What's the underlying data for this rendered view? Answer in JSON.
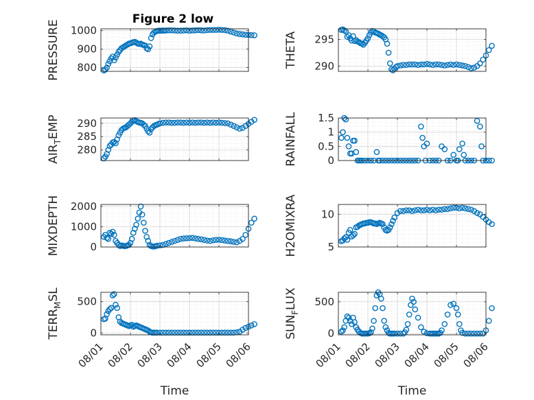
{
  "figure_title": "Figure 2 low",
  "colors": {
    "marker": "#0072BD",
    "axis": "#262626",
    "grid": "#e0e0e0"
  },
  "chart_data": [
    {
      "type": "scatter",
      "title": "Figure 2 low",
      "ylabel": "PRESSURE",
      "xlabel": "",
      "xlim": [
        "08/01",
        "08/06"
      ],
      "ylim": [
        780,
        1010
      ],
      "yticks": [
        "800",
        "900",
        "1000"
      ],
      "yticks_val": [
        800,
        900,
        1000
      ],
      "grid": true,
      "x": [
        0.1,
        0.15,
        0.2,
        0.25,
        0.3,
        0.35,
        0.4,
        0.45,
        0.5,
        0.55,
        0.6,
        0.65,
        0.7,
        0.75,
        0.8,
        0.85,
        0.9,
        0.95,
        1.0,
        1.05,
        1.1,
        1.15,
        1.2,
        1.25,
        1.3,
        1.35,
        1.4,
        1.45,
        1.5,
        1.55,
        1.6,
        1.65,
        1.7,
        1.75,
        1.8,
        1.85,
        1.9,
        1.95,
        2.0,
        2.05,
        2.1,
        2.15,
        2.2,
        2.3,
        2.4,
        2.5,
        2.6,
        2.7,
        2.8,
        2.9,
        3.0,
        3.1,
        3.2,
        3.3,
        3.4,
        3.5,
        3.6,
        3.7,
        3.8,
        3.9,
        4.0,
        4.1,
        4.2,
        4.3,
        4.4,
        4.5,
        4.6,
        4.7,
        4.8,
        4.9,
        5.0,
        5.1,
        5.2
      ],
      "y": [
        785,
        790,
        800,
        820,
        835,
        850,
        860,
        840,
        855,
        870,
        885,
        895,
        905,
        910,
        915,
        920,
        925,
        930,
        932,
        935,
        938,
        940,
        935,
        930,
        928,
        930,
        925,
        922,
        920,
        905,
        900,
        915,
        960,
        980,
        990,
        995,
        998,
        1000,
        1000,
        1000,
        1001,
        1000,
        1001,
        1002,
        1002,
        1001,
        1000,
        1000,
        1001,
        1002,
        1000,
        1001,
        1002,
        1003,
        1002,
        1001,
        1003,
        1004,
        1004,
        1004,
        1005,
        1004,
        1003,
        1000,
        995,
        990,
        985,
        982,
        980,
        978,
        977,
        976,
        975
      ]
    },
    {
      "type": "scatter",
      "title": "",
      "ylabel": "THETA",
      "xlabel": "",
      "xlim": [
        "08/01",
        "08/06"
      ],
      "ylim": [
        289,
        297
      ],
      "yticks": [
        "290",
        "295"
      ],
      "yticks_val": [
        290,
        295
      ],
      "grid": true,
      "x": [
        0.1,
        0.15,
        0.2,
        0.25,
        0.3,
        0.35,
        0.4,
        0.45,
        0.5,
        0.55,
        0.6,
        0.65,
        0.7,
        0.75,
        0.8,
        0.85,
        0.9,
        0.95,
        1.0,
        1.05,
        1.1,
        1.15,
        1.2,
        1.25,
        1.3,
        1.35,
        1.4,
        1.45,
        1.5,
        1.55,
        1.6,
        1.65,
        1.7,
        1.75,
        1.8,
        1.85,
        1.9,
        1.95,
        2.0,
        2.1,
        2.2,
        2.3,
        2.4,
        2.5,
        2.6,
        2.7,
        2.8,
        2.9,
        3.0,
        3.1,
        3.2,
        3.3,
        3.4,
        3.5,
        3.6,
        3.7,
        3.8,
        3.9,
        4.0,
        4.1,
        4.2,
        4.3,
        4.4,
        4.5,
        4.6,
        4.7,
        4.8,
        4.9,
        5.0,
        5.1,
        5.2
      ],
      "y": [
        296.8,
        296.9,
        296.7,
        296.5,
        295.5,
        295.8,
        295.2,
        294.8,
        295.6,
        294.7,
        294.9,
        294.6,
        294.5,
        294.3,
        294.2,
        294.0,
        294.4,
        294.8,
        295.2,
        295.8,
        296.3,
        296.6,
        296.5,
        296.3,
        296.2,
        296.1,
        295.9,
        295.8,
        295.6,
        295.4,
        295.0,
        294.2,
        292.5,
        290.5,
        289.4,
        289.2,
        289.5,
        289.8,
        290.0,
        290.1,
        290.2,
        290.2,
        290.3,
        290.3,
        290.3,
        290.2,
        290.3,
        290.3,
        290.4,
        290.3,
        290.2,
        290.3,
        290.3,
        290.2,
        290.1,
        290.2,
        290.3,
        290.2,
        290.3,
        290.2,
        290.1,
        290.0,
        289.8,
        289.6,
        289.7,
        290.0,
        290.5,
        291.2,
        292.0,
        293.0,
        293.8
      ]
    },
    {
      "type": "scatter",
      "title": "",
      "ylabel": "AIR_TEMP",
      "xlabel": "",
      "xlim": [
        "08/01",
        "08/06"
      ],
      "ylim": [
        276,
        292
      ],
      "yticks": [
        "280",
        "285",
        "290"
      ],
      "yticks_val": [
        280,
        285,
        290
      ],
      "grid": true,
      "x": [
        0.1,
        0.15,
        0.2,
        0.25,
        0.3,
        0.35,
        0.4,
        0.45,
        0.5,
        0.55,
        0.6,
        0.65,
        0.7,
        0.75,
        0.8,
        0.85,
        0.9,
        0.95,
        1.0,
        1.05,
        1.1,
        1.15,
        1.2,
        1.25,
        1.3,
        1.35,
        1.4,
        1.45,
        1.5,
        1.55,
        1.6,
        1.65,
        1.7,
        1.75,
        1.8,
        1.85,
        1.9,
        1.95,
        2.0,
        2.1,
        2.2,
        2.3,
        2.4,
        2.5,
        2.6,
        2.7,
        2.8,
        2.9,
        3.0,
        3.1,
        3.2,
        3.3,
        3.4,
        3.5,
        3.6,
        3.7,
        3.8,
        3.9,
        4.0,
        4.1,
        4.2,
        4.3,
        4.4,
        4.5,
        4.6,
        4.7,
        4.8,
        4.9,
        5.0,
        5.1,
        5.2
      ],
      "y": [
        276.8,
        277.5,
        278.5,
        280,
        281.5,
        282,
        282.8,
        283,
        282.5,
        284,
        285.5,
        286.5,
        287.5,
        288,
        288.3,
        288.5,
        289,
        289.5,
        290,
        290.6,
        291,
        291.2,
        290.8,
        290.5,
        290.3,
        290.2,
        290.0,
        289.5,
        289,
        288,
        287,
        286.5,
        287.8,
        288.5,
        289,
        289.3,
        289.5,
        289.8,
        290,
        290.2,
        290.3,
        290.3,
        290.2,
        290.2,
        290.3,
        290.3,
        290.2,
        290.3,
        290.2,
        290.3,
        290.2,
        290.3,
        290.3,
        290.2,
        290.3,
        290.2,
        290.3,
        290.2,
        290.3,
        290.2,
        290.1,
        290.0,
        289.5,
        289.0,
        288.5,
        288.0,
        288.3,
        289.0,
        289.8,
        290.6,
        291.3
      ]
    },
    {
      "type": "scatter",
      "title": "",
      "ylabel": "RAINFALL",
      "xlabel": "",
      "xlim": [
        "08/01",
        "08/06"
      ],
      "ylim": [
        0,
        1.5
      ],
      "yticks": [
        "0",
        "0.5",
        "1",
        "1.5"
      ],
      "yticks_val": [
        0,
        0.5,
        1,
        1.5
      ],
      "grid": true,
      "x": [
        0.1,
        0.15,
        0.2,
        0.25,
        0.3,
        0.35,
        0.4,
        0.45,
        0.5,
        0.55,
        0.6,
        0.65,
        0.7,
        0.75,
        0.8,
        0.9,
        1.0,
        1.1,
        1.2,
        1.3,
        1.35,
        1.4,
        1.5,
        1.6,
        1.7,
        1.8,
        1.9,
        2.0,
        2.1,
        2.2,
        2.3,
        2.4,
        2.5,
        2.6,
        2.7,
        2.8,
        2.85,
        2.9,
        2.95,
        3.0,
        3.1,
        3.2,
        3.3,
        3.4,
        3.5,
        3.6,
        3.7,
        3.8,
        3.9,
        4.0,
        4.05,
        4.1,
        4.2,
        4.25,
        4.3,
        4.4,
        4.5,
        4.6,
        4.7,
        4.8,
        4.85,
        4.9,
        5.0,
        5.1,
        5.2
      ],
      "y": [
        0.8,
        1.0,
        1.5,
        1.45,
        0.8,
        0.5,
        0.25,
        0.25,
        0.7,
        0.7,
        0.3,
        0,
        0,
        0,
        0,
        0,
        0,
        0,
        0,
        0.3,
        0,
        0,
        0,
        0,
        0,
        0,
        0,
        0,
        0,
        0,
        0,
        0,
        0,
        0,
        0,
        1.2,
        0.8,
        0.5,
        0,
        0.6,
        0,
        0,
        0,
        0,
        0.5,
        0.4,
        0,
        0,
        0.2,
        0,
        0,
        0.4,
        0.6,
        0.2,
        0,
        0,
        0,
        0,
        1.4,
        1.2,
        0.5,
        0,
        0,
        0,
        0
      ]
    },
    {
      "type": "scatter",
      "title": "",
      "ylabel": "MIXDEPTH",
      "xlabel": "",
      "xlim": [
        "08/01",
        "08/06"
      ],
      "ylim": [
        0,
        2100
      ],
      "yticks": [
        "0",
        "1000",
        "2000"
      ],
      "yticks_val": [
        0,
        1000,
        2000
      ],
      "grid": true,
      "x": [
        0.1,
        0.15,
        0.2,
        0.25,
        0.3,
        0.35,
        0.4,
        0.45,
        0.5,
        0.55,
        0.6,
        0.65,
        0.7,
        0.75,
        0.8,
        0.85,
        0.9,
        0.95,
        1.0,
        1.05,
        1.1,
        1.15,
        1.2,
        1.25,
        1.3,
        1.35,
        1.4,
        1.45,
        1.5,
        1.55,
        1.6,
        1.65,
        1.7,
        1.75,
        1.8,
        1.85,
        1.9,
        2.0,
        2.1,
        2.2,
        2.3,
        2.4,
        2.5,
        2.6,
        2.7,
        2.8,
        2.9,
        3.0,
        3.1,
        3.2,
        3.3,
        3.4,
        3.5,
        3.6,
        3.7,
        3.8,
        3.9,
        4.0,
        4.1,
        4.2,
        4.3,
        4.4,
        4.5,
        4.6,
        4.7,
        4.8,
        4.9,
        5.0,
        5.1,
        5.2
      ],
      "y": [
        500,
        600,
        450,
        400,
        700,
        650,
        750,
        600,
        300,
        200,
        100,
        50,
        80,
        60,
        40,
        50,
        80,
        100,
        200,
        400,
        700,
        900,
        1100,
        1400,
        1700,
        2000,
        1600,
        1200,
        800,
        500,
        300,
        100,
        50,
        30,
        20,
        40,
        60,
        80,
        100,
        150,
        200,
        250,
        300,
        350,
        400,
        420,
        430,
        440,
        450,
        420,
        400,
        380,
        350,
        320,
        300,
        330,
        350,
        360,
        340,
        320,
        300,
        280,
        250,
        230,
        300,
        400,
        600,
        900,
        1200,
        1400
      ]
    },
    {
      "type": "scatter",
      "title": "",
      "ylabel": "H2OMIXRA",
      "xlabel": "",
      "xlim": [
        "08/01",
        "08/06"
      ],
      "ylim": [
        5,
        11.5
      ],
      "yticks": [
        "5",
        "10"
      ],
      "yticks_val": [
        5,
        10
      ],
      "grid": true,
      "x": [
        0.1,
        0.15,
        0.2,
        0.25,
        0.3,
        0.35,
        0.4,
        0.45,
        0.5,
        0.55,
        0.6,
        0.65,
        0.7,
        0.75,
        0.8,
        0.85,
        0.9,
        0.95,
        1.0,
        1.05,
        1.1,
        1.15,
        1.2,
        1.25,
        1.3,
        1.35,
        1.4,
        1.45,
        1.5,
        1.55,
        1.6,
        1.65,
        1.7,
        1.75,
        1.8,
        1.85,
        1.9,
        2.0,
        2.1,
        2.2,
        2.3,
        2.4,
        2.5,
        2.6,
        2.7,
        2.8,
        2.9,
        3.0,
        3.1,
        3.2,
        3.3,
        3.4,
        3.5,
        3.6,
        3.7,
        3.8,
        3.9,
        4.0,
        4.1,
        4.2,
        4.3,
        4.4,
        4.5,
        4.6,
        4.7,
        4.8,
        4.9,
        5.0,
        5.1,
        5.2
      ],
      "y": [
        5.9,
        6.0,
        6.3,
        6.5,
        6.1,
        7.2,
        7.6,
        6.6,
        6.8,
        7.0,
        8.0,
        8.1,
        8.3,
        8.4,
        8.5,
        8.6,
        8.6,
        8.7,
        8.7,
        8.8,
        8.8,
        8.7,
        8.6,
        8.6,
        8.5,
        8.6,
        8.7,
        8.6,
        8.5,
        8.0,
        7.6,
        7.5,
        7.6,
        8.0,
        8.5,
        9.0,
        9.5,
        10.2,
        10.5,
        10.5,
        10.6,
        10.6,
        10.5,
        10.6,
        10.7,
        10.6,
        10.6,
        10.7,
        10.6,
        10.7,
        10.6,
        10.7,
        10.7,
        10.8,
        10.8,
        10.9,
        11.0,
        11.0,
        10.9,
        11.0,
        10.9,
        10.8,
        10.7,
        10.5,
        10.2,
        10.0,
        9.6,
        9.2,
        8.8,
        8.5
      ]
    },
    {
      "type": "scatter",
      "title": "",
      "ylabel": "TERR_MSL",
      "xlabel": "Time",
      "xlim": [
        "08/01",
        "08/06"
      ],
      "ylim": [
        -30,
        650
      ],
      "yticks": [
        "0",
        "500"
      ],
      "yticks_val": [
        0,
        500
      ],
      "xticks": [
        "08/01",
        "08/02",
        "08/03",
        "08/04",
        "08/05",
        "08/06"
      ],
      "grid": true,
      "x": [
        0.1,
        0.15,
        0.2,
        0.25,
        0.3,
        0.35,
        0.4,
        0.45,
        0.5,
        0.55,
        0.6,
        0.65,
        0.7,
        0.75,
        0.8,
        0.85,
        0.9,
        0.95,
        1.0,
        1.05,
        1.1,
        1.15,
        1.2,
        1.25,
        1.3,
        1.35,
        1.4,
        1.45,
        1.5,
        1.55,
        1.6,
        1.65,
        1.7,
        1.75,
        1.8,
        1.85,
        1.9,
        2.0,
        2.1,
        2.2,
        2.3,
        2.4,
        2.5,
        2.6,
        2.7,
        2.8,
        2.9,
        3.0,
        3.1,
        3.2,
        3.3,
        3.4,
        3.5,
        3.6,
        3.7,
        3.8,
        3.9,
        4.0,
        4.1,
        4.2,
        4.3,
        4.4,
        4.5,
        4.6,
        4.7,
        4.8,
        4.9,
        5.0,
        5.1,
        5.2
      ],
      "y": [
        220,
        230,
        300,
        350,
        380,
        400,
        600,
        620,
        450,
        400,
        250,
        180,
        160,
        150,
        140,
        130,
        120,
        110,
        120,
        130,
        100,
        110,
        120,
        110,
        100,
        90,
        80,
        70,
        60,
        50,
        40,
        20,
        10,
        5,
        5,
        5,
        5,
        5,
        5,
        5,
        5,
        5,
        5,
        5,
        5,
        5,
        5,
        5,
        5,
        5,
        5,
        5,
        5,
        5,
        5,
        5,
        5,
        5,
        5,
        5,
        5,
        5,
        5,
        10,
        20,
        50,
        80,
        100,
        120,
        140
      ]
    },
    {
      "type": "scatter",
      "title": "",
      "ylabel": "SUN_FLUX",
      "xlabel": "Time",
      "xlim": [
        "08/01",
        "08/06"
      ],
      "ylim": [
        -20,
        650
      ],
      "yticks": [
        "0",
        "500"
      ],
      "yticks_val": [
        0,
        500
      ],
      "xticks": [
        "08/01",
        "08/02",
        "08/03",
        "08/04",
        "08/05",
        "08/06"
      ],
      "grid": true,
      "x": [
        0.1,
        0.15,
        0.2,
        0.25,
        0.3,
        0.35,
        0.4,
        0.45,
        0.5,
        0.55,
        0.6,
        0.65,
        0.7,
        0.75,
        0.8,
        0.85,
        0.9,
        0.95,
        1.0,
        1.05,
        1.1,
        1.15,
        1.2,
        1.25,
        1.3,
        1.35,
        1.4,
        1.45,
        1.5,
        1.55,
        1.6,
        1.65,
        1.7,
        1.75,
        1.8,
        1.85,
        1.9,
        2.0,
        2.1,
        2.2,
        2.25,
        2.3,
        2.35,
        2.4,
        2.45,
        2.5,
        2.55,
        2.6,
        2.7,
        2.8,
        2.9,
        3.0,
        3.1,
        3.15,
        3.2,
        3.25,
        3.3,
        3.35,
        3.4,
        3.45,
        3.5,
        3.6,
        3.7,
        3.8,
        3.9,
        4.0,
        4.05,
        4.1,
        4.15,
        4.2,
        4.3,
        4.4,
        4.5,
        4.6,
        4.7,
        4.8,
        4.9,
        5.0,
        5.1,
        5.2
      ],
      "y": [
        30,
        50,
        100,
        200,
        270,
        250,
        200,
        150,
        250,
        180,
        100,
        60,
        30,
        10,
        0,
        0,
        0,
        0,
        0,
        5,
        20,
        80,
        200,
        400,
        600,
        650,
        620,
        550,
        400,
        200,
        100,
        50,
        10,
        0,
        0,
        0,
        0,
        0,
        0,
        0,
        20,
        60,
        150,
        300,
        450,
        550,
        500,
        380,
        250,
        100,
        30,
        5,
        0,
        0,
        0,
        0,
        0,
        0,
        0,
        10,
        50,
        150,
        300,
        450,
        470,
        400,
        300,
        150,
        50,
        10,
        0,
        0,
        0,
        0,
        0,
        0,
        0,
        50,
        200,
        400
      ]
    }
  ]
}
